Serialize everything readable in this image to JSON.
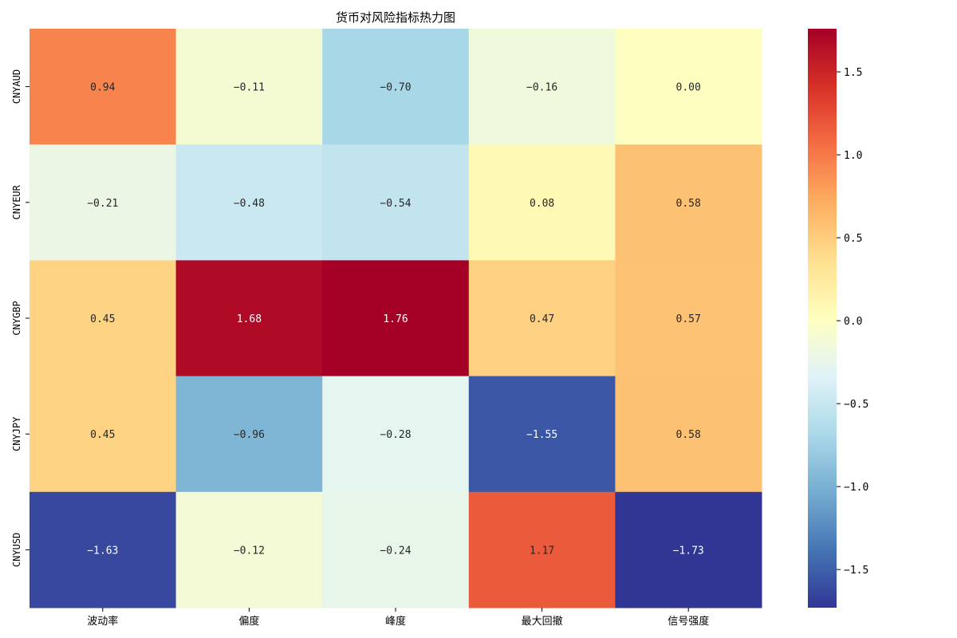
{
  "chart_data": {
    "type": "heatmap",
    "title": "货币对风险指标热力图",
    "xlabel": "",
    "ylabel": "",
    "columns": [
      "波动率",
      "偏度",
      "峰度",
      "最大回撤",
      "信号强度"
    ],
    "rows": [
      "CNYAUD",
      "CNYEUR",
      "CNYGBP",
      "CNYJPY",
      "CNYUSD"
    ],
    "values": [
      [
        0.94,
        -0.11,
        -0.7,
        -0.16,
        0.0
      ],
      [
        -0.21,
        -0.48,
        -0.54,
        0.08,
        0.58
      ],
      [
        0.45,
        1.68,
        1.76,
        0.47,
        0.57
      ],
      [
        0.45,
        -0.96,
        -0.28,
        -1.55,
        0.58
      ],
      [
        -1.63,
        -0.12,
        -0.24,
        1.17,
        -1.73
      ]
    ],
    "value_format": "2 decimals",
    "colormap": "RdYlBu_r",
    "vmin": -1.73,
    "vmax": 1.76,
    "colorbar": {
      "ticks": [
        -1.5,
        -1.0,
        -0.5,
        0.0,
        0.5,
        1.0,
        1.5
      ],
      "tick_labels": [
        "−1.5",
        "−1.0",
        "−0.5",
        "0.0",
        "0.5",
        "1.0",
        "1.5"
      ],
      "placement": "right"
    },
    "grid": false
  }
}
